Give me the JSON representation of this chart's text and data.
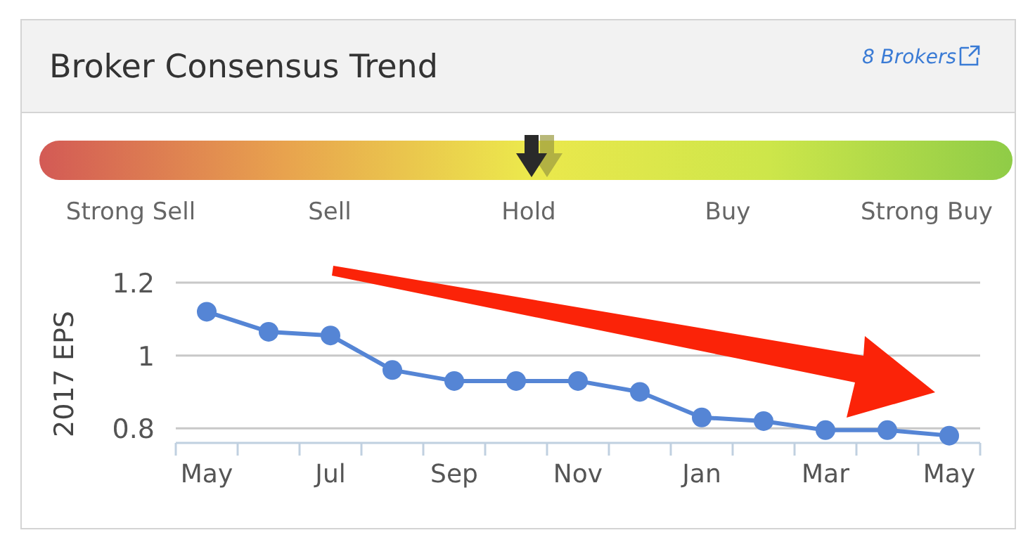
{
  "chart_data": [
    {
      "type": "other",
      "title": "Broker Consensus Trend",
      "annotations": [
        "8 Brokers"
      ],
      "categories": [
        "Strong Sell",
        "Sell",
        "Hold",
        "Buy",
        "Strong Buy"
      ],
      "colors": [
        "#d35a55",
        "#e8a24e",
        "#ece84c",
        "#cde64a",
        "#8fcc47"
      ]
    },
    {
      "type": "line",
      "ylabel": "2017 EPS",
      "categories": [
        "May",
        null,
        "Jul",
        null,
        "Sep",
        null,
        "Nov",
        null,
        "Jan",
        null,
        "Mar",
        null,
        "May"
      ],
      "series": [
        {
          "color": "#5585d5",
          "values": [
            1.12,
            1.065,
            1.055,
            0.96,
            0.93,
            0.93,
            0.93,
            0.9,
            0.83,
            0.82,
            0.795,
            0.795,
            0.78
          ]
        }
      ],
      "ylim": [
        0.76,
        1.2
      ],
      "yticks": [
        {
          "value": 0.8,
          "label": "0.8"
        },
        1,
        {
          "value": 1.2,
          "label": "1.2"
        }
      ],
      "grid": "y",
      "marker": "circle",
      "line_style": "solid"
    }
  ]
}
